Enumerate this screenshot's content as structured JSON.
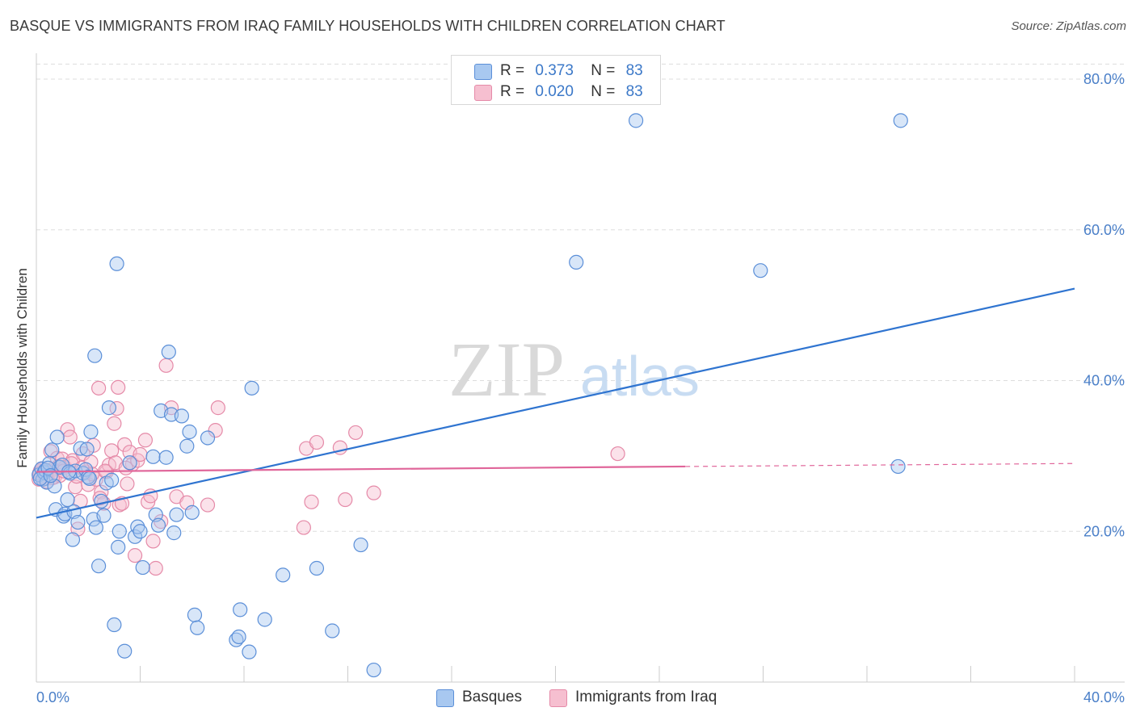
{
  "header": {
    "title": "BASQUE VS IMMIGRANTS FROM IRAQ FAMILY HOUSEHOLDS WITH CHILDREN CORRELATION CHART",
    "source": "Source: ZipAtlas.com"
  },
  "watermark": {
    "zip": "ZIP",
    "atlas": "atlas"
  },
  "legend": {
    "rows": [
      {
        "r_label": "R =",
        "r_value": "0.373",
        "n_label": "N =",
        "n_value": "83"
      },
      {
        "r_label": "R =",
        "r_value": "0.020",
        "n_label": "N =",
        "n_value": "83"
      }
    ],
    "bottom": [
      "Basques",
      "Immigrants from Iraq"
    ]
  },
  "colors": {
    "basques_fill": "#a8c8f0",
    "basques_stroke": "#5b8fd8",
    "basques_line": "#2f74d0",
    "iraq_fill": "#f6bfd0",
    "iraq_stroke": "#e58aa8",
    "iraq_line": "#e0669a",
    "tick_text": "#4a7fc8",
    "grid": "#dddddd"
  },
  "chart_data": {
    "type": "scatter",
    "title": "BASQUE VS IMMIGRANTS FROM IRAQ FAMILY HOUSEHOLDS WITH CHILDREN CORRELATION CHART",
    "xlabel": "",
    "ylabel": "Family Households with Children",
    "xlim": [
      0,
      40
    ],
    "ylim": [
      0,
      83
    ],
    "x_tick_labels": [
      "0.0%",
      "40.0%"
    ],
    "y_ticks": [
      20,
      40,
      60,
      80
    ],
    "y_tick_labels": [
      "20.0%",
      "40.0%",
      "60.0%",
      "80.0%"
    ],
    "grid": true,
    "legend_position": "top-center",
    "series": [
      {
        "name": "Basques",
        "r": 0.373,
        "n": 83,
        "trend": {
          "x": [
            0,
            40
          ],
          "y": [
            21.8,
            52.2
          ]
        },
        "points": [
          [
            0.1,
            27.5
          ],
          [
            0.2,
            28.3
          ],
          [
            0.25,
            26.9
          ],
          [
            0.3,
            27.8
          ],
          [
            0.35,
            28.1
          ],
          [
            0.4,
            26.5
          ],
          [
            0.5,
            29.0
          ],
          [
            0.6,
            30.8
          ],
          [
            0.7,
            26.0
          ],
          [
            0.75,
            22.9
          ],
          [
            0.8,
            32.5
          ],
          [
            0.9,
            28.5
          ],
          [
            1.0,
            28.8
          ],
          [
            1.05,
            22.0
          ],
          [
            1.1,
            22.3
          ],
          [
            1.2,
            24.2
          ],
          [
            1.3,
            27.7
          ],
          [
            1.4,
            18.9
          ],
          [
            1.45,
            22.6
          ],
          [
            1.5,
            28.0
          ],
          [
            1.6,
            21.2
          ],
          [
            1.7,
            31.0
          ],
          [
            1.8,
            27.7
          ],
          [
            1.9,
            28.2
          ],
          [
            1.95,
            30.9
          ],
          [
            2.0,
            27.2
          ],
          [
            2.1,
            33.2
          ],
          [
            2.2,
            21.6
          ],
          [
            2.25,
            43.3
          ],
          [
            2.3,
            20.5
          ],
          [
            2.4,
            15.4
          ],
          [
            2.5,
            24.0
          ],
          [
            2.6,
            22.1
          ],
          [
            2.7,
            26.4
          ],
          [
            2.8,
            36.4
          ],
          [
            2.9,
            26.8
          ],
          [
            3.0,
            7.6
          ],
          [
            3.1,
            55.5
          ],
          [
            3.15,
            17.9
          ],
          [
            3.2,
            20.0
          ],
          [
            3.4,
            4.1
          ],
          [
            3.6,
            29.1
          ],
          [
            3.8,
            19.3
          ],
          [
            3.9,
            20.6
          ],
          [
            4.0,
            20.0
          ],
          [
            4.1,
            15.2
          ],
          [
            4.5,
            29.9
          ],
          [
            4.6,
            22.2
          ],
          [
            4.7,
            20.8
          ],
          [
            4.8,
            36.0
          ],
          [
            5.0,
            29.8
          ],
          [
            5.1,
            43.8
          ],
          [
            5.2,
            35.5
          ],
          [
            5.3,
            19.8
          ],
          [
            5.4,
            22.2
          ],
          [
            5.6,
            35.3
          ],
          [
            5.8,
            31.3
          ],
          [
            5.9,
            33.2
          ],
          [
            6.0,
            22.5
          ],
          [
            6.1,
            8.9
          ],
          [
            6.2,
            7.2
          ],
          [
            6.6,
            32.4
          ],
          [
            7.7,
            5.6
          ],
          [
            7.8,
            6.0
          ],
          [
            7.85,
            9.6
          ],
          [
            8.2,
            4.0
          ],
          [
            8.3,
            39.0
          ],
          [
            8.8,
            8.3
          ],
          [
            9.5,
            14.2
          ],
          [
            10.8,
            15.1
          ],
          [
            11.4,
            6.8
          ],
          [
            12.5,
            18.2
          ],
          [
            13.0,
            1.6
          ],
          [
            20.8,
            55.7
          ],
          [
            23.1,
            74.5
          ],
          [
            27.9,
            54.6
          ],
          [
            33.3,
            74.5
          ],
          [
            33.2,
            28.6
          ],
          [
            0.15,
            27.0
          ],
          [
            0.45,
            28.4
          ],
          [
            0.55,
            27.4
          ],
          [
            1.25,
            27.9
          ],
          [
            2.05,
            27.0
          ]
        ]
      },
      {
        "name": "Immigrants from Iraq",
        "r": 0.02,
        "n": 83,
        "trend": {
          "x": [
            0,
            25
          ],
          "y": [
            27.9,
            28.6
          ]
        },
        "trend_dashed": {
          "x": [
            25,
            40
          ],
          "y": [
            28.6,
            29.0
          ]
        },
        "points": [
          [
            0.1,
            26.9
          ],
          [
            0.15,
            28.0
          ],
          [
            0.2,
            27.3
          ],
          [
            0.25,
            28.3
          ],
          [
            0.3,
            27.6
          ],
          [
            0.35,
            27.0
          ],
          [
            0.4,
            28.1
          ],
          [
            0.45,
            27.5
          ],
          [
            0.5,
            27.8
          ],
          [
            0.55,
            30.6
          ],
          [
            0.6,
            28.2
          ],
          [
            0.7,
            27.2
          ],
          [
            0.8,
            29.7
          ],
          [
            0.9,
            27.4
          ],
          [
            1.0,
            29.6
          ],
          [
            1.1,
            28.5
          ],
          [
            1.2,
            33.5
          ],
          [
            1.3,
            32.5
          ],
          [
            1.4,
            29.4
          ],
          [
            1.5,
            25.9
          ],
          [
            1.6,
            20.3
          ],
          [
            1.7,
            24.0
          ],
          [
            1.8,
            30.3
          ],
          [
            1.9,
            27.9
          ],
          [
            2.0,
            26.2
          ],
          [
            2.1,
            29.2
          ],
          [
            2.2,
            31.4
          ],
          [
            2.3,
            26.9
          ],
          [
            2.4,
            39.0
          ],
          [
            2.5,
            25.2
          ],
          [
            2.6,
            23.7
          ],
          [
            2.7,
            27.9
          ],
          [
            2.8,
            28.8
          ],
          [
            2.9,
            30.7
          ],
          [
            3.0,
            34.3
          ],
          [
            3.1,
            36.3
          ],
          [
            3.15,
            39.1
          ],
          [
            3.2,
            23.5
          ],
          [
            3.3,
            23.7
          ],
          [
            3.4,
            31.5
          ],
          [
            3.5,
            26.3
          ],
          [
            3.6,
            30.5
          ],
          [
            3.7,
            28.9
          ],
          [
            3.8,
            16.8
          ],
          [
            3.9,
            29.4
          ],
          [
            4.0,
            30.2
          ],
          [
            4.2,
            32.1
          ],
          [
            4.3,
            23.9
          ],
          [
            4.4,
            24.7
          ],
          [
            4.5,
            18.7
          ],
          [
            4.6,
            15.1
          ],
          [
            4.8,
            21.3
          ],
          [
            5.0,
            42.0
          ],
          [
            5.2,
            36.4
          ],
          [
            5.4,
            24.6
          ],
          [
            5.8,
            23.8
          ],
          [
            6.6,
            23.5
          ],
          [
            7.0,
            36.4
          ],
          [
            6.9,
            33.4
          ],
          [
            10.3,
            20.5
          ],
          [
            10.4,
            31.0
          ],
          [
            10.6,
            23.9
          ],
          [
            10.8,
            31.8
          ],
          [
            11.7,
            31.1
          ],
          [
            11.9,
            24.2
          ],
          [
            12.3,
            33.1
          ],
          [
            13.0,
            25.1
          ],
          [
            22.4,
            30.3
          ],
          [
            0.12,
            27.7
          ],
          [
            0.22,
            28.3
          ],
          [
            0.32,
            27.9
          ],
          [
            0.42,
            26.6
          ],
          [
            0.62,
            27.1
          ],
          [
            0.85,
            28.6
          ],
          [
            1.05,
            28.0
          ],
          [
            1.35,
            29.0
          ],
          [
            1.55,
            27.3
          ],
          [
            1.75,
            28.4
          ],
          [
            2.15,
            27.6
          ],
          [
            2.45,
            24.4
          ],
          [
            2.65,
            28.0
          ],
          [
            3.05,
            29.1
          ],
          [
            3.45,
            28.4
          ]
        ]
      }
    ]
  }
}
